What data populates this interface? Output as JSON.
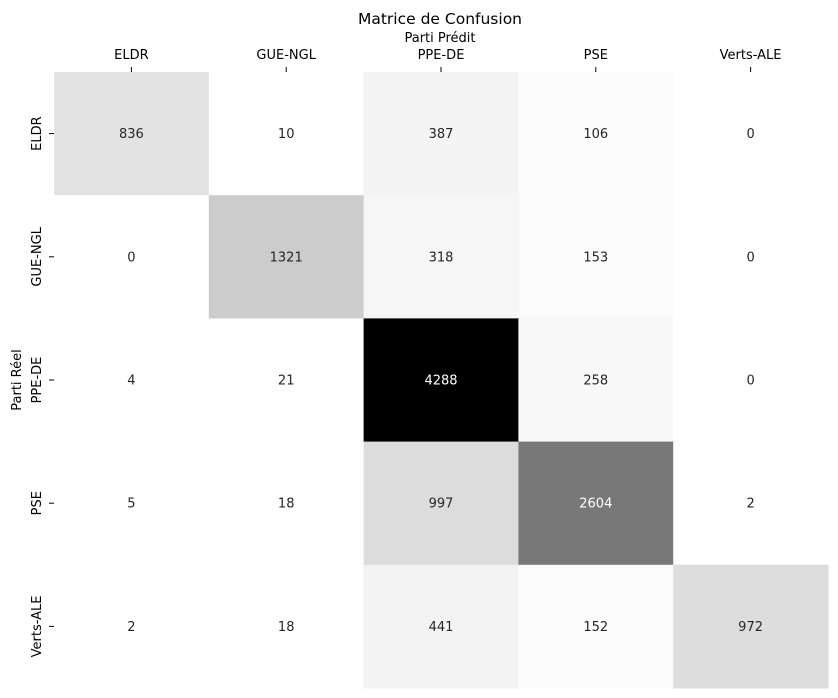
{
  "chart_data": {
    "type": "heatmap",
    "title": "Matrice de Confusion",
    "xlabel": "Parti Prédit",
    "ylabel": "Parti Réel",
    "x_categories": [
      "ELDR",
      "GUE-NGL",
      "PPE-DE",
      "PSE",
      "Verts-ALE"
    ],
    "y_categories": [
      "ELDR",
      "GUE-NGL",
      "PPE-DE",
      "PSE",
      "Verts-ALE"
    ],
    "values": [
      [
        836,
        10,
        387,
        106,
        0
      ],
      [
        0,
        1321,
        318,
        153,
        0
      ],
      [
        4,
        21,
        4288,
        258,
        0
      ],
      [
        5,
        18,
        997,
        2604,
        2
      ],
      [
        2,
        18,
        441,
        152,
        972
      ]
    ],
    "value_range": [
      0,
      4288
    ],
    "colormap": "greys",
    "low_color": "#ffffff",
    "high_color": "#000000",
    "x_axis_position": "top",
    "colorbar": false,
    "grid": false
  }
}
